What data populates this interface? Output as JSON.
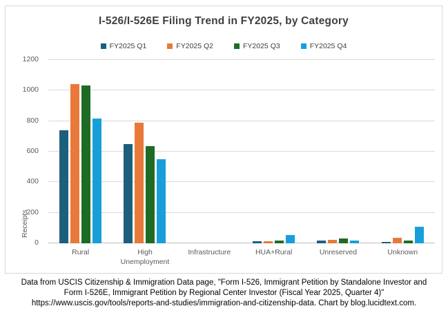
{
  "chart_data": {
    "type": "bar",
    "title": "I-526/I-526E Filing Trend in FY2025, by Category",
    "ylabel": "Receipts",
    "xlabel": "",
    "ylim": [
      0,
      1200
    ],
    "ytick_step": 200,
    "grid": true,
    "legend_position": "top",
    "categories": [
      "Rural",
      "High Unemployment",
      "Infrastructure",
      "HUA+Rural",
      "Unreserved",
      "Unknown"
    ],
    "series": [
      {
        "name": "FY2025 Q1",
        "color": "#1c5f7d",
        "values": [
          740,
          650,
          0,
          15,
          20,
          8
        ]
      },
      {
        "name": "FY2025 Q2",
        "color": "#e8793b",
        "values": [
          1040,
          790,
          0,
          14,
          23,
          38
        ]
      },
      {
        "name": "FY2025 Q3",
        "color": "#1e6b26",
        "values": [
          1035,
          635,
          0,
          18,
          30,
          18
        ]
      },
      {
        "name": "FY2025 Q4",
        "color": "#189fda",
        "values": [
          815,
          550,
          0,
          55,
          20,
          110
        ]
      }
    ]
  },
  "footer": {
    "line1": "Data from USCIS Citizenship & Immigration Data page, \"Form I-526, Immigrant Petition by Standalone Investor and",
    "line2": "Form I-526E, Immigrant Petition by Regional Center Investor (Fiscal Year 2025, Quarter 4)\"",
    "line3": "https://www.uscis.gov/tools/reports-and-studies/immigration-and-citizenship-data. Chart by blog.lucidtext.com."
  }
}
